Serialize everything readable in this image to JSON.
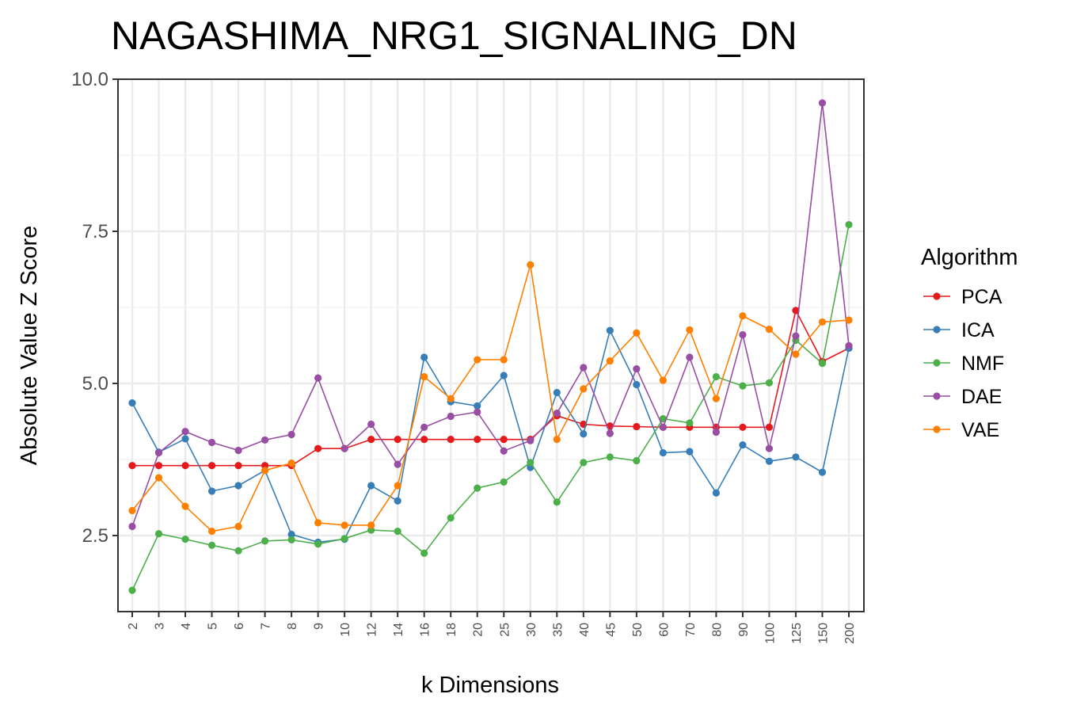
{
  "chart_data": {
    "type": "line",
    "title": "NAGASHIMA_NRG1_SIGNALING_DN",
    "xlabel": "k Dimensions",
    "ylabel": "Absolute Value Z Score",
    "categories": [
      "2",
      "3",
      "4",
      "5",
      "6",
      "7",
      "8",
      "9",
      "10",
      "12",
      "14",
      "16",
      "18",
      "20",
      "25",
      "30",
      "35",
      "40",
      "45",
      "50",
      "60",
      "70",
      "80",
      "90",
      "100",
      "125",
      "150",
      "200"
    ],
    "yticks": [
      "2.5",
      "5.0",
      "7.5",
      "10.0"
    ],
    "ylim": [
      1.25,
      10.0
    ],
    "grid": true,
    "legend_title": "Algorithm",
    "legend_position": "right",
    "series": [
      {
        "name": "PCA",
        "color": "#e41a1c",
        "values": [
          3.65,
          3.65,
          3.65,
          3.65,
          3.65,
          3.65,
          3.65,
          3.93,
          3.93,
          4.08,
          4.08,
          4.08,
          4.08,
          4.08,
          4.08,
          4.08,
          4.47,
          4.33,
          4.3,
          4.29,
          4.28,
          4.28,
          4.28,
          4.28,
          4.28,
          6.2,
          5.36,
          5.58
        ]
      },
      {
        "name": "ICA",
        "color": "#377eb8",
        "values": [
          4.68,
          3.87,
          4.09,
          3.23,
          3.32,
          3.57,
          2.52,
          2.39,
          2.44,
          3.32,
          3.07,
          5.43,
          4.7,
          4.63,
          5.13,
          3.62,
          4.85,
          4.17,
          5.87,
          4.98,
          3.86,
          3.88,
          3.2,
          3.99,
          3.72,
          3.79,
          3.54,
          5.58
        ]
      },
      {
        "name": "NMF",
        "color": "#4daf4a",
        "values": [
          1.6,
          2.53,
          2.44,
          2.34,
          2.25,
          2.41,
          2.43,
          2.36,
          2.45,
          2.59,
          2.57,
          2.21,
          2.79,
          3.28,
          3.38,
          3.7,
          3.05,
          3.7,
          3.79,
          3.73,
          4.42,
          4.35,
          5.11,
          4.96,
          5.01,
          5.71,
          5.33,
          7.61
        ]
      },
      {
        "name": "DAE",
        "color": "#984ea3",
        "values": [
          2.65,
          3.86,
          4.21,
          4.03,
          3.9,
          4.07,
          4.16,
          5.09,
          3.93,
          4.33,
          3.67,
          4.28,
          4.46,
          4.53,
          3.89,
          4.06,
          4.51,
          5.26,
          4.18,
          5.24,
          4.28,
          5.43,
          4.2,
          5.8,
          3.93,
          5.78,
          9.61,
          5.62
        ]
      },
      {
        "name": "VAE",
        "color": "#ff7f00",
        "values": [
          2.91,
          3.45,
          2.98,
          2.57,
          2.65,
          3.57,
          3.69,
          2.71,
          2.67,
          2.67,
          3.32,
          5.11,
          4.75,
          5.39,
          5.39,
          6.95,
          4.08,
          4.91,
          5.37,
          5.83,
          5.05,
          5.88,
          4.75,
          6.11,
          5.89,
          5.48,
          6.01,
          6.04
        ]
      }
    ]
  }
}
